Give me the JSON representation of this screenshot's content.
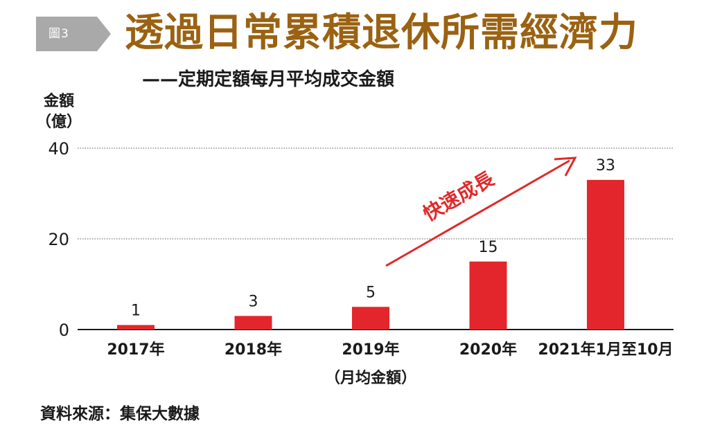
{
  "header": {
    "figure_tag": "圖3",
    "title": "透過日常累積退休所需經濟力",
    "subtitle": "——定期定額每月平均成交金額"
  },
  "source": "資料來源：集保大數據",
  "colors": {
    "bar": "#e3262b",
    "title": "#9a6212",
    "tag": "#a9a9a9",
    "annotation": "#e02a2a"
  },
  "chart_data": {
    "type": "bar",
    "ylabel_line1": "金額",
    "ylabel_line2": "（億）",
    "categories": [
      "2017年",
      "2018年",
      "2019年",
      "2020年",
      "2021年1月至10月"
    ],
    "category_sublabels": [
      "",
      "",
      "（月均金額）",
      "",
      ""
    ],
    "values": [
      1,
      3,
      5,
      15,
      33
    ],
    "ylim": [
      0,
      40
    ],
    "yticks": [
      0,
      20,
      40
    ],
    "grid": true,
    "annotation": "快速成長"
  }
}
